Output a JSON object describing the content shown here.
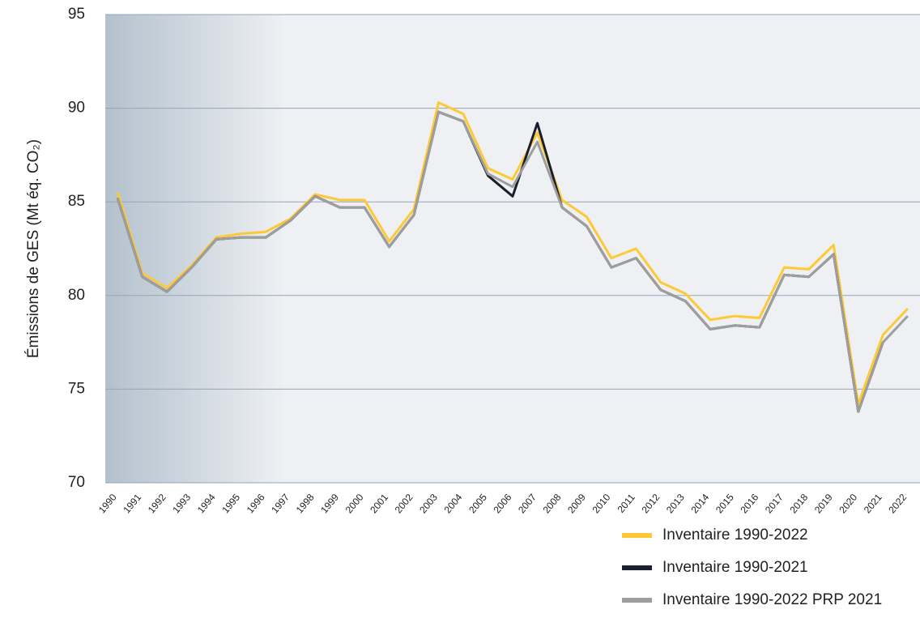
{
  "chart_data": {
    "type": "line",
    "y_label": "Émissions de GES (Mt éq. CO₂)",
    "categories": [
      "1990",
      "1991",
      "1992",
      "1993",
      "1994",
      "1995",
      "1996",
      "1997",
      "1998",
      "1999",
      "2000",
      "2001",
      "2002",
      "2003",
      "2004",
      "2005",
      "2006",
      "2007",
      "2008",
      "2009",
      "2010",
      "2011",
      "2012",
      "2013",
      "2014",
      "2015",
      "2016",
      "2017",
      "2018",
      "2019",
      "2020",
      "2021",
      "2022"
    ],
    "series": [
      {
        "name": "Inventaire 1990-2022",
        "color": "#fdc935",
        "values": [
          85.5,
          81.2,
          80.4,
          81.6,
          83.1,
          83.3,
          83.4,
          84.1,
          85.4,
          85.1,
          85.1,
          82.9,
          84.6,
          90.3,
          89.7,
          86.8,
          86.2,
          88.7,
          85.1,
          84.2,
          82.0,
          82.5,
          80.7,
          80.1,
          78.7,
          78.9,
          78.8,
          81.5,
          81.4,
          82.7,
          74.2,
          77.9,
          79.3
        ]
      },
      {
        "name": "Inventaire 1990-2021",
        "color": "#1a1f2e",
        "values": [
          85.2,
          81.0,
          80.2,
          81.5,
          83.0,
          83.1,
          83.1,
          84.0,
          85.3,
          84.7,
          84.7,
          82.6,
          84.3,
          89.8,
          89.3,
          86.4,
          85.3,
          89.2,
          84.7,
          83.7,
          81.5,
          82.0,
          80.3,
          79.7,
          78.2,
          78.4,
          78.3,
          81.1,
          81.0,
          82.2,
          73.8,
          77.5,
          null
        ]
      },
      {
        "name": "Inventaire 1990-2022 PRP 2021",
        "color": "#9e9e9e",
        "values": [
          85.2,
          81.0,
          80.2,
          81.5,
          83.0,
          83.1,
          83.1,
          84.0,
          85.3,
          84.7,
          84.7,
          82.6,
          84.3,
          89.8,
          89.3,
          86.5,
          85.8,
          88.2,
          84.7,
          83.7,
          81.5,
          82.0,
          80.3,
          79.7,
          78.2,
          78.4,
          78.3,
          81.1,
          81.0,
          82.2,
          73.8,
          77.5,
          78.9
        ]
      }
    ],
    "ylim": [
      70,
      95
    ],
    "yticks": [
      70,
      75,
      80,
      85,
      90,
      95
    ],
    "grid": true
  }
}
